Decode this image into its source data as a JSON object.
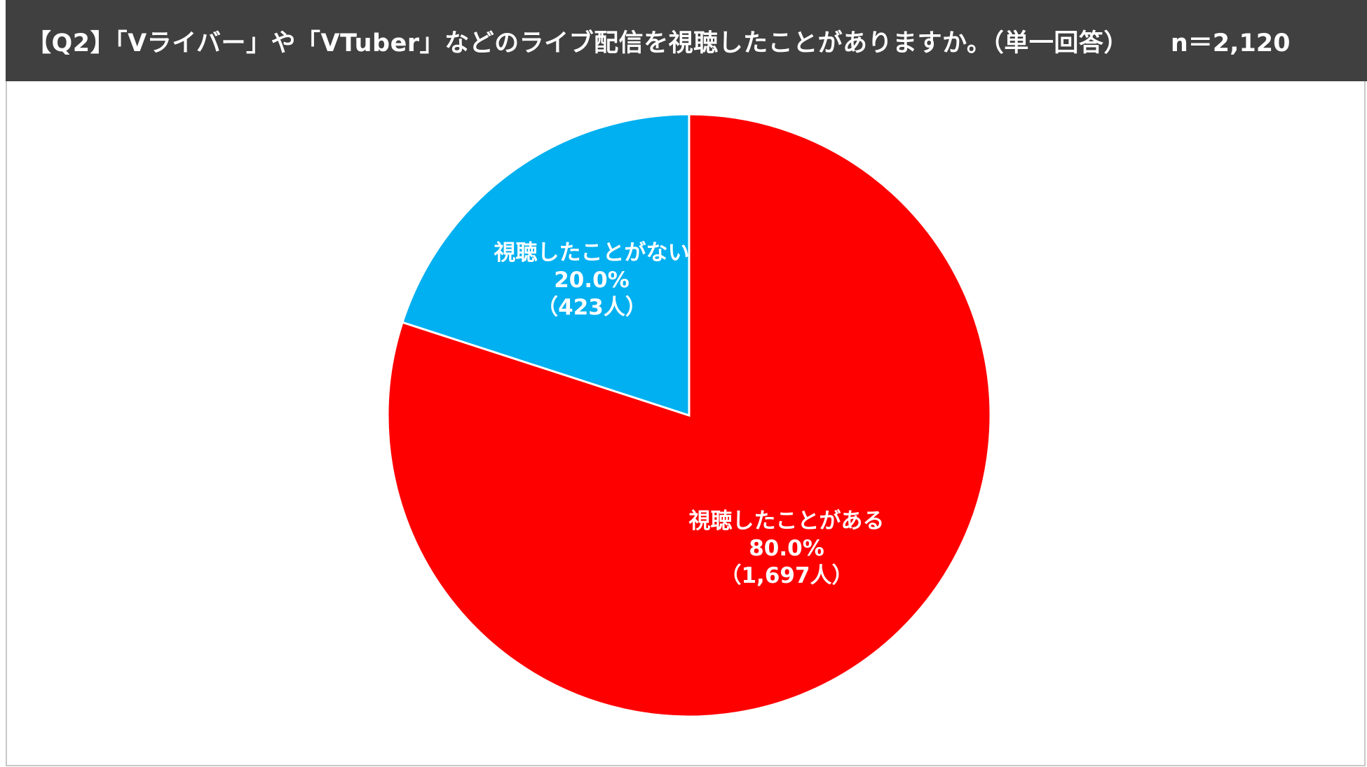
{
  "header": {
    "title": "【Q2】「Vライバー」や「VTuber」などのライブ配信を視聴したことがありますか。（単一回答）",
    "sample_size": "n＝2,120"
  },
  "chart_data": {
    "type": "pie",
    "title": "【Q2】「Vライバー」や「VTuber」などのライブ配信を視聴したことがありますか。（単一回答）",
    "n": 2120,
    "slices": [
      {
        "name": "視聴したことがある",
        "value": 80.0,
        "percent_label": "80.0%",
        "count_label": "（1,697人）",
        "count": 1697,
        "color": "#ff0000"
      },
      {
        "name": "視聴したことがない",
        "value": 20.0,
        "percent_label": "20.0%",
        "count_label": "（423人）",
        "count": 423,
        "color": "#00b0f0"
      }
    ],
    "start_angle": "12 o'clock",
    "direction": "clockwise",
    "legend": "none (labels inside slices)"
  }
}
